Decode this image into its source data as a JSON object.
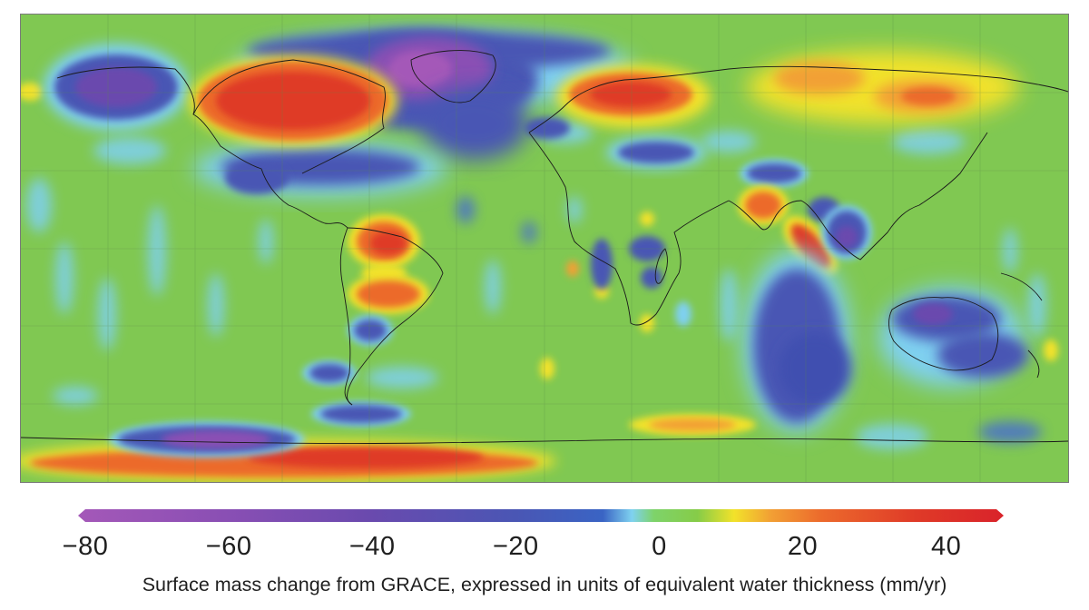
{
  "colorbar": {
    "ticks": [
      "−80",
      "−60",
      "−40",
      "−20",
      "0",
      "20",
      "40"
    ],
    "tick_values": [
      -80,
      -60,
      -40,
      -20,
      0,
      20,
      40
    ],
    "range": [
      -80,
      47
    ],
    "stops": [
      {
        "value": -80,
        "color": "#a458b8"
      },
      {
        "value": -60,
        "color": "#8a4fb4"
      },
      {
        "value": -40,
        "color": "#6a4aae"
      },
      {
        "value": -20,
        "color": "#4a56b4"
      },
      {
        "value": -8,
        "color": "#3a64c4"
      },
      {
        "value": -4,
        "color": "#7fd2f0"
      },
      {
        "value": -1,
        "color": "#7ed36a"
      },
      {
        "value": 5,
        "color": "#86cc48"
      },
      {
        "value": 10,
        "color": "#f2e22a"
      },
      {
        "value": 15,
        "color": "#f2a034"
      },
      {
        "value": 22,
        "color": "#ec6a2c"
      },
      {
        "value": 35,
        "color": "#df3a28"
      },
      {
        "value": 47,
        "color": "#d9232a"
      }
    ]
  },
  "map": {
    "background_color": "#80c852",
    "grid": true,
    "regions": [
      {
        "name": "Greenland",
        "value": -70
      },
      {
        "name": "Alaska",
        "value": -45
      },
      {
        "name": "Northern Canada",
        "value": 40
      },
      {
        "name": "Scandinavia",
        "value": 30
      },
      {
        "name": "Northern Siberia",
        "value": 20
      },
      {
        "name": "Amazon",
        "value": 35
      },
      {
        "name": "Patagonia",
        "value": -35
      },
      {
        "name": "West Antarctica",
        "value": -50
      },
      {
        "name": "East Antarctica coast",
        "value": 25
      },
      {
        "name": "Northern India",
        "value": -40
      },
      {
        "name": "Bay of Bengal",
        "value": 35
      },
      {
        "name": "Sumatra-Andaman",
        "value": -45
      },
      {
        "name": "Indian Ocean south",
        "value": -35
      },
      {
        "name": "Australia",
        "value": -30
      }
    ]
  },
  "caption": "Surface mass change from GRACE, expressed in units of equivalent water thickness (mm/yr)"
}
